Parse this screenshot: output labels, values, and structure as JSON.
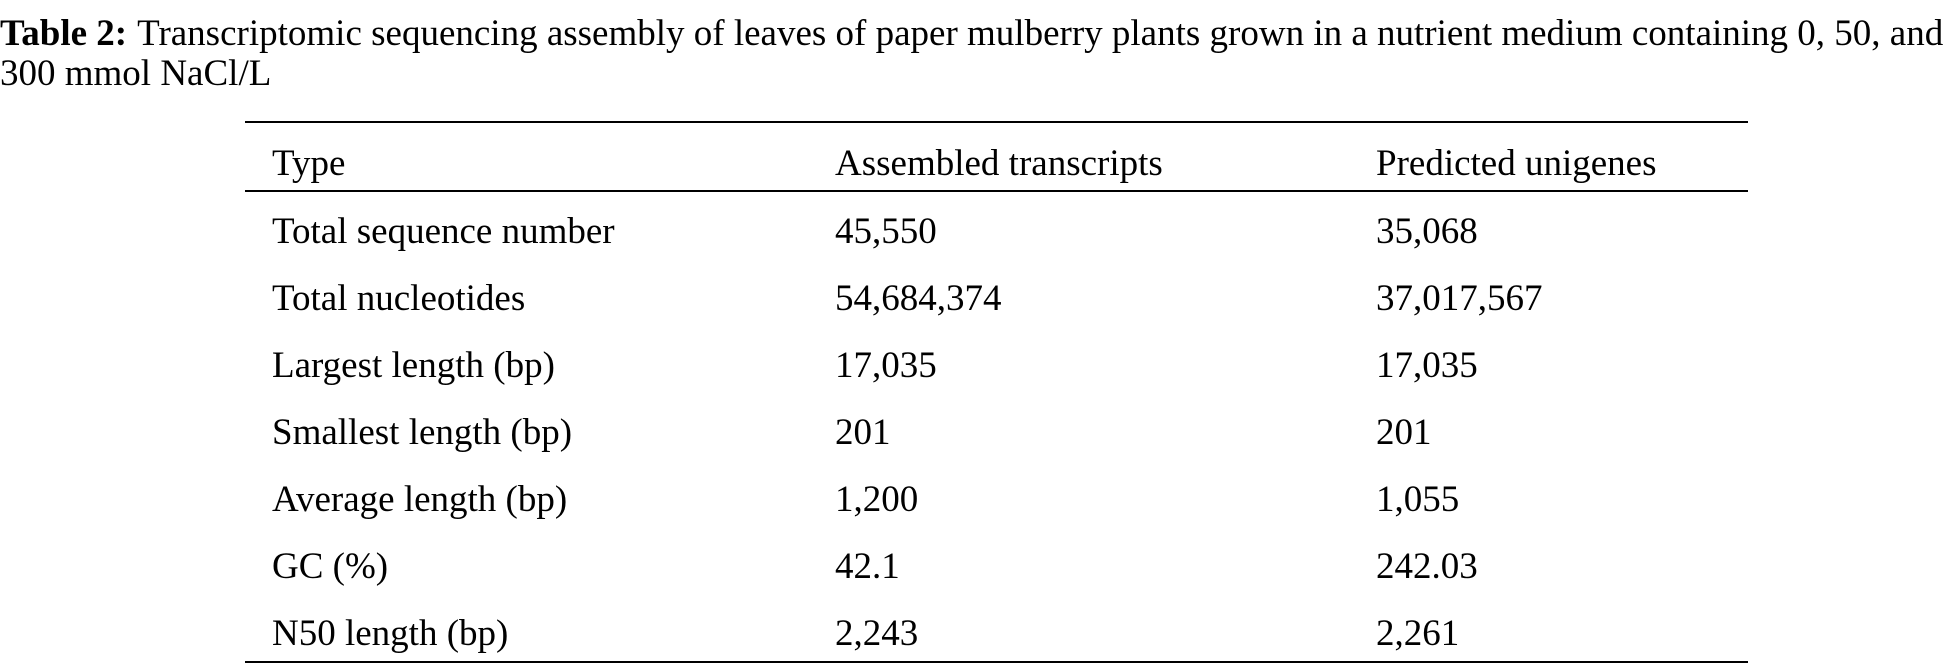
{
  "caption": {
    "label": "Table 2:",
    "text": "Transcriptomic sequencing assembly of leaves of paper mulberry plants grown in a nutrient medium containing 0, 50, and 300 mmol NaCl/L"
  },
  "table": {
    "columns": [
      "Type",
      "Assembled transcripts",
      "Predicted unigenes"
    ],
    "rows": [
      [
        "Total sequence number",
        "45,550",
        "35,068"
      ],
      [
        "Total nucleotides",
        "54,684,374",
        "37,017,567"
      ],
      [
        "Largest length (bp)",
        "17,035",
        "17,035"
      ],
      [
        "Smallest length (bp)",
        "201",
        "201"
      ],
      [
        "Average length (bp)",
        "1,200",
        "1,055"
      ],
      [
        "GC (%)",
        "42.1",
        "242.03"
      ],
      [
        "N50 length (bp)",
        "2,243",
        "2,261"
      ]
    ]
  }
}
